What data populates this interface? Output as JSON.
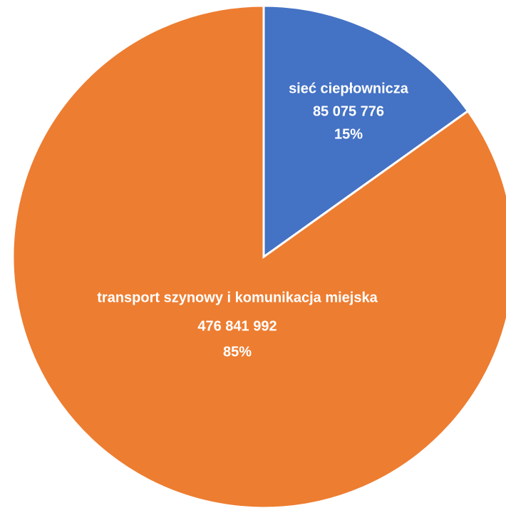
{
  "chart_data": {
    "type": "pie",
    "categories": [
      "sieć ciepłownicza",
      "transport szynowy i komunikacja miejska"
    ],
    "values": [
      85075776,
      476841992
    ],
    "value_labels": [
      "85 075 776",
      "476 841 992"
    ],
    "percent_labels": [
      "15%",
      "85%"
    ],
    "colors": [
      "#4472c4",
      "#ed7d31"
    ]
  }
}
